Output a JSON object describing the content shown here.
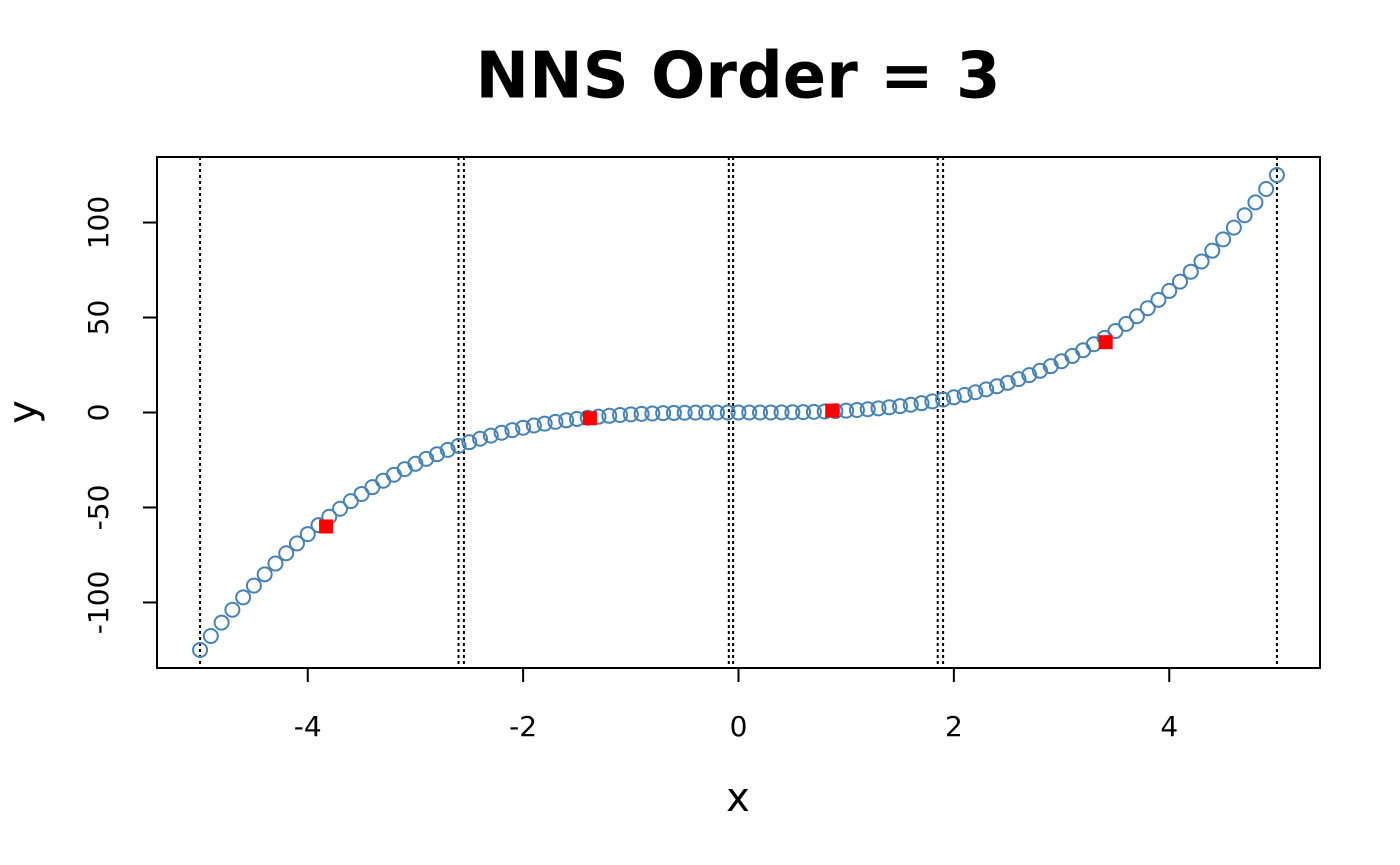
{
  "chart_data": {
    "type": "scatter",
    "title": "NNS Order = 3",
    "x_label": "x",
    "y_label": "y",
    "xlim": [
      -5.4,
      5.4
    ],
    "ylim": [
      -134.5,
      134.5
    ],
    "xticks": [
      -4,
      -2,
      0,
      2,
      4
    ],
    "yticks": [
      -100,
      -50,
      0,
      50,
      100
    ],
    "vlines": [
      -5,
      -2.6,
      -2.55,
      -0.09,
      -0.05,
      1.85,
      1.9,
      5
    ],
    "vline_color": "#000000",
    "series": [
      {
        "color": "#4682b4",
        "marker": "circle",
        "x": [
          -5,
          -4.9,
          -4.8,
          -4.7,
          -4.6,
          -4.5,
          -4.4,
          -4.3,
          -4.2,
          -4.1,
          -4,
          -3.9,
          -3.8,
          -3.7,
          -3.6,
          -3.5,
          -3.4,
          -3.3,
          -3.2,
          -3.1,
          -3,
          -2.9,
          -2.8,
          -2.7,
          -2.6,
          -2.5,
          -2.4,
          -2.3,
          -2.2,
          -2.1,
          -2,
          -1.9,
          -1.8,
          -1.7,
          -1.6,
          -1.5,
          -1.4,
          -1.3,
          -1.2,
          -1.1,
          -1,
          -0.9,
          -0.8,
          -0.7,
          -0.6,
          -0.5,
          -0.4,
          -0.3,
          -0.2,
          -0.1,
          0,
          0.1,
          0.2,
          0.3,
          0.4,
          0.5,
          0.6,
          0.7,
          0.8,
          0.9,
          1,
          1.1,
          1.2,
          1.3,
          1.4,
          1.5,
          1.6,
          1.7,
          1.8,
          1.9,
          2,
          2.1,
          2.2,
          2.3,
          2.4,
          2.5,
          2.6,
          2.7,
          2.8,
          2.9,
          3,
          3.1,
          3.2,
          3.3,
          3.4,
          3.5,
          3.6,
          3.7,
          3.8,
          3.9,
          4,
          4.1,
          4.2,
          4.3,
          4.4,
          4.5,
          4.6,
          4.7,
          4.8,
          4.9,
          5
        ],
        "values": [
          -125,
          -117.649,
          -110.592,
          -103.823,
          -97.336,
          -91.125,
          -85.184,
          -79.507,
          -74.088,
          -68.921,
          -64,
          -59.319,
          -54.872,
          -50.653,
          -46.656,
          -42.875,
          -39.304,
          -35.937,
          -32.768,
          -29.791,
          -27,
          -24.389,
          -21.952,
          -19.683,
          -17.576,
          -15.625,
          -13.824,
          -12.167,
          -10.648,
          -9.261,
          -8,
          -6.859,
          -5.832,
          -4.913,
          -4.096,
          -3.375,
          -2.744,
          -2.197,
          -1.728,
          -1.331,
          -1,
          -0.729,
          -0.512,
          -0.343,
          -0.216,
          -0.125,
          -0.064,
          -0.027,
          -0.008,
          -0.001,
          0,
          0.001,
          0.008,
          0.027,
          0.064,
          0.125,
          0.216,
          0.343,
          0.512,
          0.729,
          1,
          1.331,
          1.728,
          2.197,
          2.744,
          3.375,
          4.096,
          4.913,
          5.832,
          6.859,
          8,
          9.261,
          10.648,
          12.167,
          13.824,
          15.625,
          17.576,
          19.683,
          21.952,
          24.389,
          27,
          29.791,
          32.768,
          35.937,
          39.304,
          42.875,
          46.656,
          50.653,
          54.872,
          59.319,
          64,
          68.921,
          74.088,
          79.507,
          85.184,
          91.125,
          97.336,
          103.823,
          110.592,
          117.649,
          125
        ]
      },
      {
        "color": "#ff0000",
        "marker": "square",
        "x": [
          -3.83,
          -1.38,
          0.87,
          3.41
        ],
        "values": [
          -60,
          -3,
          1,
          37
        ]
      }
    ]
  }
}
